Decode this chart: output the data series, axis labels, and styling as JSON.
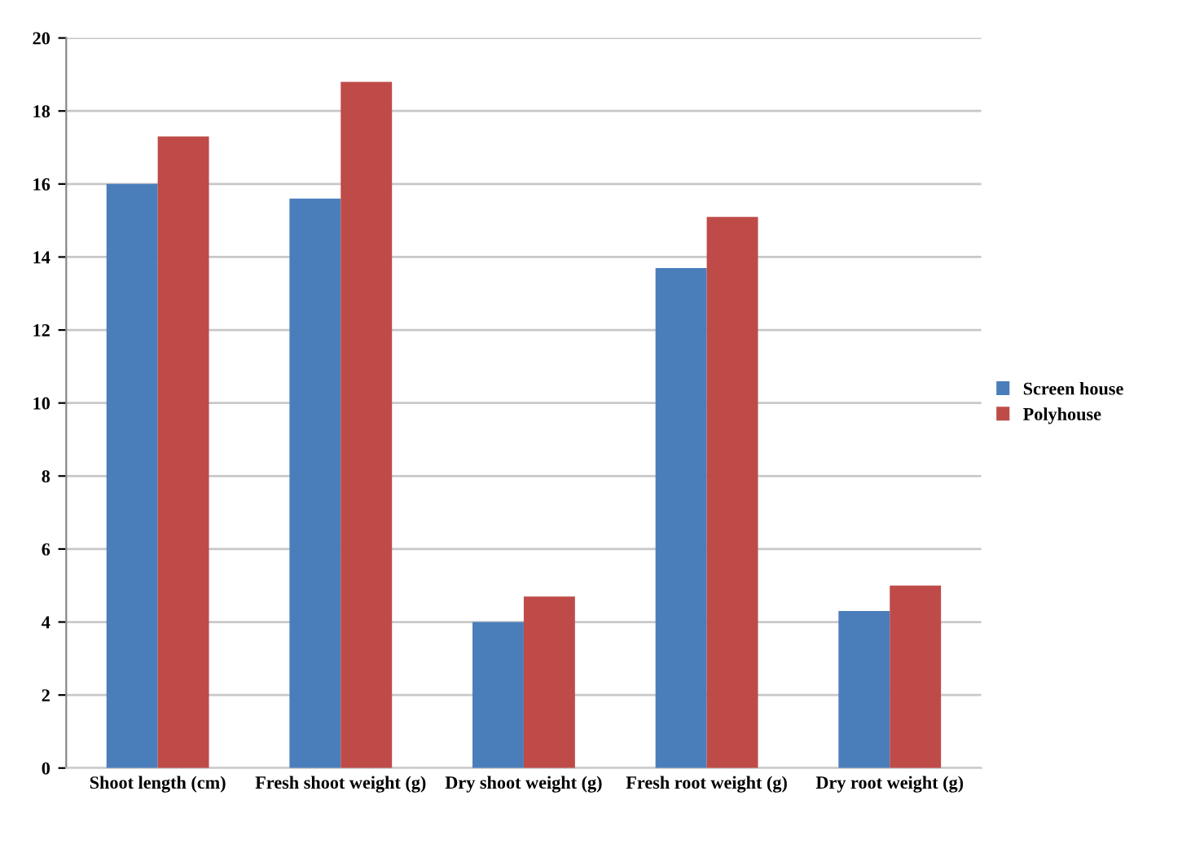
{
  "chart_data": {
    "type": "bar",
    "categories": [
      "Shoot length (cm)",
      "Fresh shoot weight (g)",
      "Dry shoot weight (g)",
      "Fresh root weight (g)",
      "Dry root weight (g)"
    ],
    "series": [
      {
        "name": "Screen house",
        "color": "#4a7ebb",
        "values": [
          16.0,
          15.6,
          4.0,
          13.7,
          4.3
        ]
      },
      {
        "name": "Polyhouse",
        "color": "#be4b48",
        "values": [
          17.3,
          18.8,
          4.7,
          15.1,
          5.0
        ]
      }
    ],
    "ylim": [
      0,
      20
    ],
    "yticks": [
      0,
      2,
      4,
      6,
      8,
      10,
      12,
      14,
      16,
      18,
      20
    ],
    "grid": "y",
    "legend": "right"
  }
}
